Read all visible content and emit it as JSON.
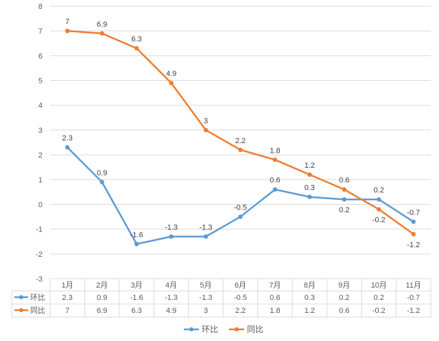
{
  "chart_data": {
    "type": "line",
    "categories": [
      "1月",
      "2月",
      "3月",
      "4月",
      "5月",
      "6月",
      "7月",
      "8月",
      "9月",
      "10月",
      "11月"
    ],
    "series": [
      {
        "name": "环比",
        "color": "#5B9BD5",
        "values": [
          2.3,
          0.9,
          -1.6,
          -1.3,
          -1.3,
          -0.5,
          0.6,
          0.3,
          0.2,
          0.2,
          -0.7
        ],
        "labels": [
          "2.3",
          "0.9",
          "-1.6",
          "-1.3",
          "-1.3",
          "-0.5",
          "0.6",
          "0.3",
          "0.2",
          "0.2",
          "-0.7"
        ]
      },
      {
        "name": "同比",
        "color": "#ED7D31",
        "values": [
          7,
          6.9,
          6.3,
          4.9,
          3,
          2.2,
          1.8,
          1.2,
          0.6,
          -0.2,
          -1.2
        ],
        "labels": [
          "7",
          "6.9",
          "6.3",
          "4.9",
          "3",
          "2.2",
          "1.8",
          "1.2",
          "0.6",
          "-0.2",
          "-1.2"
        ]
      }
    ],
    "ylim": [
      -3,
      8
    ],
    "yticks": [
      "8",
      "7",
      "6",
      "5",
      "4",
      "3",
      "2",
      "1",
      "0",
      "-1",
      "-2",
      "-3"
    ],
    "grid": true,
    "data_table": true,
    "legend_position": "bottom-center"
  }
}
